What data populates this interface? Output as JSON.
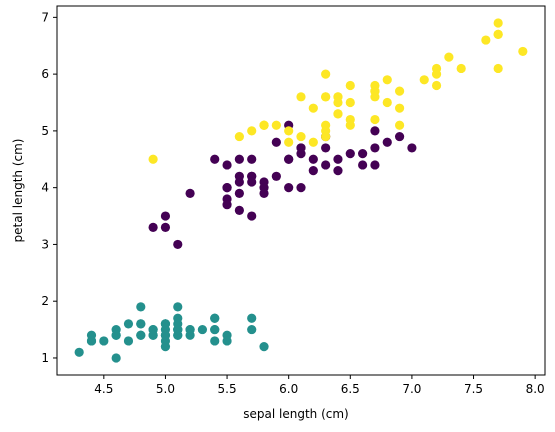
{
  "chart_data": {
    "type": "scatter",
    "title": "",
    "xlabel": "sepal length (cm)",
    "ylabel": "petal length (cm)",
    "xlim": [
      4.12,
      8.08
    ],
    "ylim": [
      0.7,
      7.2
    ],
    "xticks": [
      "4.5",
      "5.0",
      "5.5",
      "6.0",
      "6.5",
      "7.0",
      "7.5",
      "8.0"
    ],
    "yticks": [
      "1",
      "2",
      "3",
      "4",
      "5",
      "6",
      "7"
    ],
    "grid": false,
    "legend": "none",
    "series": [
      {
        "color": "#24908d",
        "x": [
          5.1,
          4.9,
          4.7,
          4.6,
          5.0,
          5.4,
          4.6,
          5.0,
          4.4,
          4.9,
          5.4,
          4.8,
          4.8,
          4.3,
          5.8,
          5.7,
          5.4,
          5.1,
          5.7,
          5.1,
          5.4,
          5.1,
          4.6,
          5.1,
          4.8,
          5.0,
          5.0,
          5.2,
          5.2,
          4.7,
          4.8,
          5.4,
          5.2,
          5.5,
          4.9,
          5.0,
          5.5,
          4.9,
          4.4,
          5.1,
          5.0,
          4.5,
          4.4,
          5.0,
          5.1,
          4.8,
          5.1,
          4.6,
          5.3,
          5.0
        ],
        "y": [
          1.4,
          1.4,
          1.3,
          1.5,
          1.4,
          1.7,
          1.4,
          1.5,
          1.4,
          1.5,
          1.5,
          1.6,
          1.4,
          1.1,
          1.2,
          1.5,
          1.3,
          1.4,
          1.7,
          1.5,
          1.7,
          1.5,
          1.0,
          1.7,
          1.9,
          1.6,
          1.6,
          1.5,
          1.4,
          1.6,
          1.6,
          1.5,
          1.5,
          1.4,
          1.5,
          1.2,
          1.3,
          1.4,
          1.3,
          1.5,
          1.3,
          1.3,
          1.3,
          1.6,
          1.9,
          1.4,
          1.6,
          1.4,
          1.5,
          1.4
        ]
      },
      {
        "color": "#440154",
        "x": [
          7.0,
          6.4,
          6.9,
          5.5,
          6.5,
          5.7,
          6.3,
          4.9,
          6.6,
          5.2,
          5.0,
          5.9,
          6.0,
          6.1,
          5.6,
          6.7,
          5.6,
          5.8,
          6.2,
          5.6,
          5.9,
          6.1,
          6.3,
          6.1,
          6.4,
          6.6,
          6.8,
          6.7,
          6.0,
          5.7,
          5.5,
          5.5,
          5.8,
          6.0,
          5.4,
          6.0,
          6.7,
          6.3,
          5.6,
          5.5,
          5.5,
          6.1,
          5.8,
          5.0,
          5.6,
          5.7,
          5.7,
          6.2,
          5.1,
          5.7
        ],
        "y": [
          4.7,
          4.5,
          4.9,
          4.0,
          4.6,
          4.5,
          4.7,
          3.3,
          4.6,
          3.9,
          3.5,
          4.2,
          4.0,
          4.7,
          3.6,
          4.4,
          4.5,
          4.1,
          4.5,
          3.9,
          4.8,
          4.0,
          4.9,
          4.7,
          4.3,
          4.4,
          4.8,
          5.0,
          4.5,
          3.5,
          3.8,
          3.7,
          3.9,
          5.1,
          4.5,
          4.5,
          4.7,
          4.4,
          4.1,
          4.0,
          4.4,
          4.6,
          4.0,
          3.3,
          4.2,
          4.2,
          4.2,
          4.3,
          3.0,
          4.1
        ]
      },
      {
        "color": "#fde725",
        "x": [
          6.3,
          5.8,
          7.1,
          6.3,
          6.5,
          7.6,
          4.9,
          7.3,
          6.7,
          7.2,
          6.5,
          6.4,
          6.8,
          5.7,
          5.8,
          6.4,
          6.5,
          7.7,
          7.7,
          6.0,
          6.9,
          5.6,
          7.7,
          6.3,
          6.7,
          7.2,
          6.2,
          6.1,
          6.4,
          7.2,
          7.4,
          7.9,
          6.4,
          6.3,
          6.1,
          7.7,
          6.3,
          6.4,
          6.0,
          6.9,
          6.7,
          6.9,
          5.8,
          6.8,
          6.7,
          6.7,
          6.3,
          6.5,
          6.2,
          5.9
        ],
        "y": [
          6.0,
          5.1,
          5.9,
          5.6,
          5.8,
          6.6,
          4.5,
          6.3,
          5.8,
          6.1,
          5.1,
          5.3,
          5.5,
          5.0,
          5.1,
          5.3,
          5.5,
          6.7,
          6.9,
          5.0,
          5.7,
          4.9,
          6.7,
          4.9,
          5.7,
          6.0,
          4.8,
          4.9,
          5.6,
          5.8,
          6.1,
          6.4,
          5.6,
          5.1,
          5.6,
          6.1,
          5.6,
          5.5,
          4.8,
          5.4,
          5.6,
          5.1,
          5.1,
          5.9,
          5.7,
          5.2,
          5.0,
          5.2,
          5.4,
          5.1
        ]
      }
    ]
  }
}
